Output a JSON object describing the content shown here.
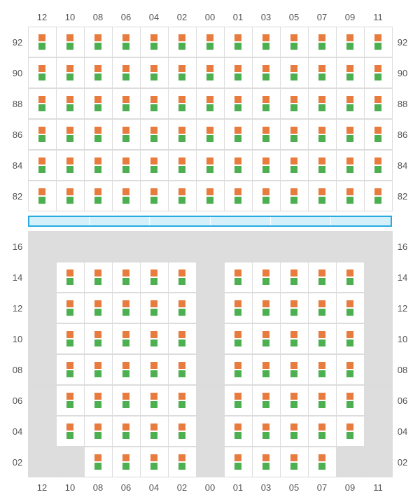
{
  "colors": {
    "orange": "#e87b3e",
    "green": "#4caf50",
    "gray_cell": "#dddddd",
    "white_cell": "#ffffff",
    "border": "#dcdcdc",
    "label": "#555555",
    "band_border": "#29abe2",
    "band_fill": "#d4f0fb"
  },
  "columns": [
    "12",
    "10",
    "08",
    "06",
    "04",
    "02",
    "00",
    "01",
    "03",
    "05",
    "07",
    "09",
    "11"
  ],
  "top": {
    "row_labels": [
      "92",
      "90",
      "88",
      "86",
      "84",
      "82"
    ],
    "cells": [
      [
        1,
        1,
        1,
        1,
        1,
        1,
        1,
        1,
        1,
        1,
        1,
        1,
        1
      ],
      [
        1,
        1,
        1,
        1,
        1,
        1,
        1,
        1,
        1,
        1,
        1,
        1,
        1
      ],
      [
        1,
        1,
        1,
        1,
        1,
        1,
        1,
        1,
        1,
        1,
        1,
        1,
        1
      ],
      [
        1,
        1,
        1,
        1,
        1,
        1,
        1,
        1,
        1,
        1,
        1,
        1,
        1
      ],
      [
        1,
        1,
        1,
        1,
        1,
        1,
        1,
        1,
        1,
        1,
        1,
        1,
        1
      ],
      [
        1,
        1,
        1,
        1,
        1,
        1,
        1,
        1,
        1,
        1,
        1,
        1,
        1
      ]
    ]
  },
  "middle_band": {
    "segments": 6
  },
  "bottom": {
    "row_labels": [
      "16",
      "14",
      "12",
      "10",
      "08",
      "06",
      "04",
      "02"
    ],
    "cells": [
      [
        0,
        0,
        0,
        0,
        0,
        0,
        0,
        0,
        0,
        0,
        0,
        0,
        0
      ],
      [
        0,
        1,
        1,
        1,
        1,
        1,
        0,
        1,
        1,
        1,
        1,
        1,
        0
      ],
      [
        0,
        1,
        1,
        1,
        1,
        1,
        0,
        1,
        1,
        1,
        1,
        1,
        0
      ],
      [
        0,
        1,
        1,
        1,
        1,
        1,
        0,
        1,
        1,
        1,
        1,
        1,
        0
      ],
      [
        0,
        1,
        1,
        1,
        1,
        1,
        0,
        1,
        1,
        1,
        1,
        1,
        0
      ],
      [
        0,
        1,
        1,
        1,
        1,
        1,
        0,
        1,
        1,
        1,
        1,
        1,
        0
      ],
      [
        0,
        1,
        1,
        1,
        1,
        1,
        0,
        1,
        1,
        1,
        1,
        1,
        0
      ],
      [
        0,
        0,
        1,
        1,
        1,
        1,
        0,
        1,
        1,
        1,
        1,
        0,
        0
      ]
    ]
  }
}
